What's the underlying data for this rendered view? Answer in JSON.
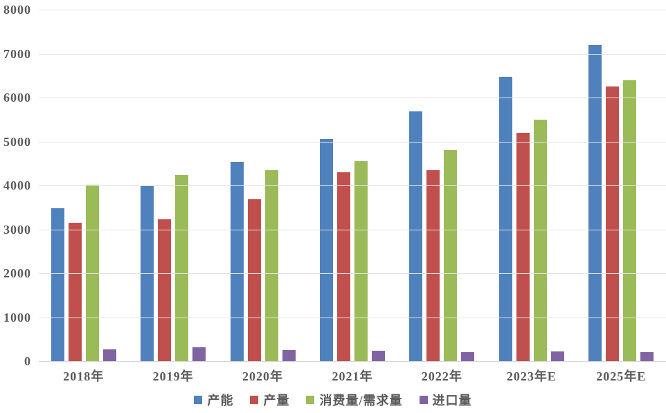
{
  "chart_data": {
    "type": "bar",
    "title": "",
    "xlabel": "",
    "ylabel": "",
    "categories": [
      "2018年",
      "2019年",
      "2020年",
      "2021年",
      "2022年",
      "2023年E",
      "2025年E"
    ],
    "series": [
      {
        "name": "产能",
        "color": "#4F81BD",
        "values": [
          3480,
          4000,
          4530,
          5050,
          5680,
          6470,
          7200
        ]
      },
      {
        "name": "产量",
        "color": "#C0504D",
        "values": [
          3150,
          3230,
          3680,
          4300,
          4350,
          5200,
          6250
        ]
      },
      {
        "name": "消费量/需求量",
        "color": "#9BBB59",
        "values": [
          4020,
          4230,
          4350,
          4550,
          4800,
          5500,
          6400
        ]
      },
      {
        "name": "进口量",
        "color": "#8064A2",
        "values": [
          270,
          320,
          250,
          240,
          210,
          220,
          210
        ]
      }
    ],
    "ylim": [
      0,
      8000
    ],
    "ytick_step": 1000,
    "ytick_labels": [
      "0",
      "1000",
      "2000",
      "3000",
      "4000",
      "5000",
      "6000",
      "7000",
      "8000"
    ],
    "grid": true,
    "legend_position": "bottom"
  },
  "colors": {
    "axis_text": "#595959",
    "gridline": "#E3E3E3",
    "baseline": "#D6D6D6",
    "background": "#FFFFFF"
  }
}
